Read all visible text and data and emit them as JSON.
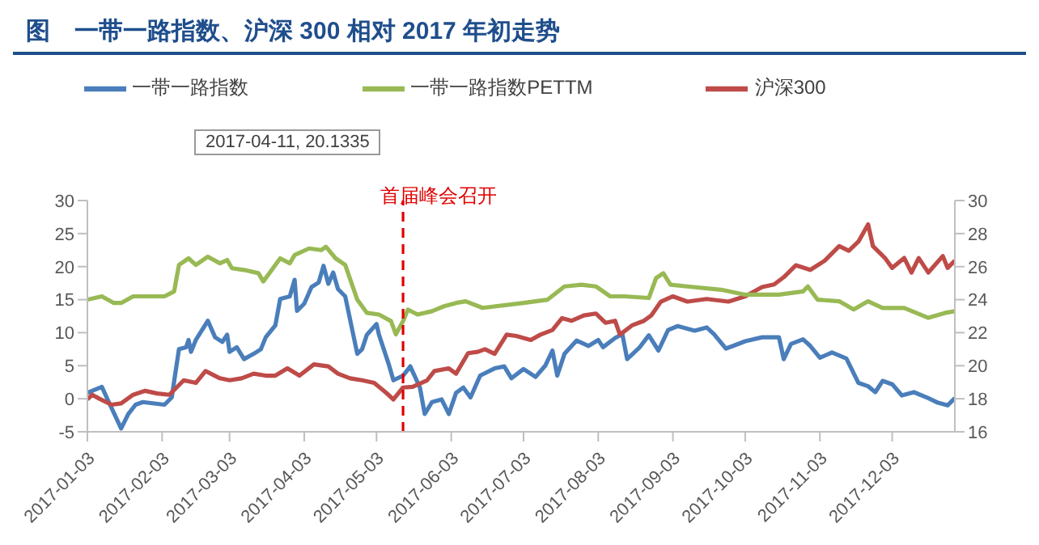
{
  "chart_data": {
    "type": "line",
    "title": "图　一带一路指数、沪深 300 相对 2017 年初走势",
    "annotations": [
      "2017-04-11, 20.1335"
    ],
    "legend": "top",
    "xlim": [
      "2017-01-03",
      "2017-12-29"
    ],
    "xticks": [
      "2017-01-03",
      "2017-02-03",
      "2017-03-03",
      "2017-04-03",
      "2017-05-03",
      "2017-06-03",
      "2017-07-03",
      "2017-08-03",
      "2017-09-03",
      "2017-10-03",
      "2017-11-03",
      "2017-12-03"
    ],
    "ylim": [
      -5,
      30
    ],
    "yticks": [
      -5,
      0,
      5,
      10,
      15,
      20,
      25,
      30
    ],
    "y2lim": [
      16,
      30
    ],
    "y2ticks": [
      16,
      18,
      20,
      22,
      24,
      26,
      28,
      30
    ],
    "ref_lines": [
      {
        "axis": "x",
        "value": "2017-05-14",
        "label": "首届峰会召开",
        "color": "#e00000",
        "line_style": "dashed"
      }
    ],
    "series": [
      {
        "name": "一带一路指数",
        "color": "#4a7ebb",
        "x": [
          "2017-01-03",
          "2017-01-09",
          "2017-01-11",
          "2017-01-17",
          "2017-01-20",
          "2017-01-23",
          "2017-01-26",
          "2017-02-04",
          "2017-02-07",
          "2017-02-10",
          "2017-02-13",
          "2017-02-14",
          "2017-02-15",
          "2017-02-17",
          "2017-02-22",
          "2017-02-25",
          "2017-02-28",
          "2017-03-02",
          "2017-03-03",
          "2017-03-06",
          "2017-03-09",
          "2017-03-13",
          "2017-03-16",
          "2017-03-18",
          "2017-03-22",
          "2017-03-24",
          "2017-03-28",
          "2017-03-30",
          "2017-03-31",
          "2017-04-03",
          "2017-04-06",
          "2017-04-09",
          "2017-04-11",
          "2017-04-13",
          "2017-04-15",
          "2017-04-17",
          "2017-04-20",
          "2017-04-25",
          "2017-04-27",
          "2017-04-29",
          "2017-05-03",
          "2017-05-04",
          "2017-05-08",
          "2017-05-10",
          "2017-05-14",
          "2017-05-17",
          "2017-05-21",
          "2017-05-23",
          "2017-05-26",
          "2017-05-30",
          "2017-06-02",
          "2017-06-05",
          "2017-06-08",
          "2017-06-11",
          "2017-06-15",
          "2017-06-21",
          "2017-06-25",
          "2017-06-28",
          "2017-07-03",
          "2017-07-08",
          "2017-07-12",
          "2017-07-15",
          "2017-07-17",
          "2017-07-20",
          "2017-07-25",
          "2017-07-30",
          "2017-08-03",
          "2017-08-05",
          "2017-08-10",
          "2017-08-13",
          "2017-08-15",
          "2017-08-20",
          "2017-08-24",
          "2017-08-28",
          "2017-09-01",
          "2017-09-05",
          "2017-09-12",
          "2017-09-17",
          "2017-09-20",
          "2017-09-25",
          "2017-09-28",
          "2017-10-03",
          "2017-10-10",
          "2017-10-17",
          "2017-10-19",
          "2017-10-22",
          "2017-10-27",
          "2017-10-30",
          "2017-11-03",
          "2017-11-08",
          "2017-11-14",
          "2017-11-19",
          "2017-11-23",
          "2017-11-26",
          "2017-11-29",
          "2017-12-03",
          "2017-12-07",
          "2017-12-12",
          "2017-12-18",
          "2017-12-22",
          "2017-12-26",
          "2017-12-29"
        ],
        "values": [
          0.9,
          1.8,
          0.2,
          -4.5,
          -2.3,
          -0.9,
          -0.5,
          -0.9,
          0.2,
          7.5,
          7.8,
          8.9,
          7.1,
          8.9,
          11.8,
          9.3,
          8.6,
          9.7,
          7.1,
          7.8,
          6,
          6.8,
          7.5,
          9.3,
          11.1,
          15.1,
          15.5,
          18,
          13.3,
          14.4,
          16.9,
          17.6,
          20.1335,
          17.4,
          19.1,
          16.6,
          15.5,
          6.8,
          7.5,
          9.7,
          11.3,
          9.7,
          5.3,
          2.8,
          3.5,
          4.9,
          1.7,
          -2.3,
          -0.5,
          -0.1,
          -2.3,
          0.9,
          1.7,
          0.2,
          3.5,
          4.6,
          4.9,
          3.1,
          4.5,
          3.3,
          5,
          7.3,
          3.5,
          6.8,
          8.8,
          8,
          8.9,
          7.8,
          9.2,
          9.8,
          6,
          7.7,
          9.6,
          7.3,
          10.4,
          11,
          10.3,
          10.8,
          9.8,
          7.6,
          8,
          8.7,
          9.3,
          9.3,
          6,
          8.3,
          9,
          8,
          6.2,
          7,
          6.1,
          2.4,
          1.9,
          1,
          2.7,
          2.2,
          0.5,
          1,
          0.1,
          -0.6,
          -1,
          0.1
        ]
      },
      {
        "name": "沪深300",
        "color": "#be4b48",
        "x": [
          "2017-01-03",
          "2017-01-05",
          "2017-01-08",
          "2017-01-13",
          "2017-01-17",
          "2017-01-22",
          "2017-01-27",
          "2017-02-01",
          "2017-02-06",
          "2017-02-12",
          "2017-02-17",
          "2017-02-21",
          "2017-02-27",
          "2017-03-03",
          "2017-03-08",
          "2017-03-13",
          "2017-03-18",
          "2017-03-22",
          "2017-03-27",
          "2017-04-01",
          "2017-04-07",
          "2017-04-13",
          "2017-04-17",
          "2017-04-22",
          "2017-04-27",
          "2017-05-02",
          "2017-05-07",
          "2017-05-10",
          "2017-05-14",
          "2017-05-18",
          "2017-05-24",
          "2017-05-27",
          "2017-06-02",
          "2017-06-05",
          "2017-06-10",
          "2017-06-14",
          "2017-06-17",
          "2017-06-21",
          "2017-06-26",
          "2017-06-30",
          "2017-07-06",
          "2017-07-10",
          "2017-07-15",
          "2017-07-19",
          "2017-07-23",
          "2017-07-28",
          "2017-08-02",
          "2017-08-06",
          "2017-08-10",
          "2017-08-12",
          "2017-08-17",
          "2017-08-22",
          "2017-08-25",
          "2017-08-29",
          "2017-09-03",
          "2017-09-09",
          "2017-09-17",
          "2017-09-26",
          "2017-10-03",
          "2017-10-10",
          "2017-10-15",
          "2017-10-19",
          "2017-10-24",
          "2017-10-30",
          "2017-11-05",
          "2017-11-11",
          "2017-11-15",
          "2017-11-19",
          "2017-11-23",
          "2017-11-25",
          "2017-11-30",
          "2017-12-03",
          "2017-12-08",
          "2017-12-11",
          "2017-12-14",
          "2017-12-18",
          "2017-12-24",
          "2017-12-26",
          "2017-12-29"
        ],
        "values": [
          -0.1,
          0.6,
          0,
          -0.9,
          -0.7,
          0.6,
          1.2,
          0.8,
          0.6,
          2.8,
          2.4,
          4.2,
          3.1,
          2.8,
          3.1,
          3.8,
          3.5,
          3.5,
          4.6,
          3.5,
          5.2,
          4.9,
          3.8,
          3.1,
          2.8,
          2.4,
          0.9,
          -0.1,
          1.7,
          1.8,
          2.8,
          4.2,
          4.6,
          3.8,
          6.9,
          7.1,
          7.5,
          6.8,
          9.7,
          9.5,
          8.9,
          9.7,
          10.4,
          12.2,
          11.8,
          12.6,
          12.9,
          11.5,
          11.8,
          9.7,
          11.1,
          11.8,
          12.6,
          14.7,
          15.5,
          14.7,
          15.1,
          14.7,
          15.5,
          16.9,
          17.3,
          18.4,
          20.2,
          19.5,
          20.9,
          23.1,
          22.4,
          23.8,
          26.4,
          23.1,
          21.3,
          19.8,
          21.3,
          19.1,
          21.3,
          19.1,
          21.6,
          19.8,
          20.9
        ]
      },
      {
        "name": "一带一路指数PETTM",
        "color": "#98b954",
        "axis": "y2",
        "x": [
          "2017-01-03",
          "2017-01-09",
          "2017-01-14",
          "2017-01-17",
          "2017-01-22",
          "2017-01-27",
          "2017-02-04",
          "2017-02-08",
          "2017-02-10",
          "2017-02-14",
          "2017-02-17",
          "2017-02-22",
          "2017-02-27",
          "2017-03-02",
          "2017-03-04",
          "2017-03-09",
          "2017-03-15",
          "2017-03-17",
          "2017-03-22",
          "2017-03-24",
          "2017-03-28",
          "2017-03-30",
          "2017-04-05",
          "2017-04-10",
          "2017-04-12",
          "2017-04-16",
          "2017-04-20",
          "2017-04-25",
          "2017-04-29",
          "2017-05-04",
          "2017-05-09",
          "2017-05-11",
          "2017-05-14",
          "2017-05-16",
          "2017-05-20",
          "2017-05-26",
          "2017-05-31",
          "2017-06-05",
          "2017-06-09",
          "2017-06-16",
          "2017-07-03",
          "2017-07-13",
          "2017-07-20",
          "2017-07-27",
          "2017-08-02",
          "2017-08-08",
          "2017-08-14",
          "2017-08-24",
          "2017-08-27",
          "2017-08-30",
          "2017-09-02",
          "2017-09-09",
          "2017-09-23",
          "2017-10-03",
          "2017-10-17",
          "2017-10-27",
          "2017-10-29",
          "2017-11-02",
          "2017-11-11",
          "2017-11-17",
          "2017-11-23",
          "2017-11-29",
          "2017-12-08",
          "2017-12-18",
          "2017-12-25",
          "2017-12-29"
        ],
        "values": [
          24,
          24.2,
          23.8,
          23.8,
          24.2,
          24.2,
          24.2,
          24.5,
          26.1,
          26.5,
          26.1,
          26.6,
          26.2,
          26.4,
          25.9,
          25.8,
          25.6,
          25.1,
          26.1,
          26.5,
          26.2,
          26.7,
          27.1,
          27,
          27.2,
          26.5,
          26.1,
          24,
          23.2,
          23.1,
          22.7,
          21.9,
          22.7,
          23.4,
          23.1,
          23.3,
          23.6,
          23.8,
          23.9,
          23.5,
          23.8,
          24,
          24.8,
          24.9,
          24.8,
          24.2,
          24.2,
          24.1,
          25.3,
          25.6,
          24.9,
          24.8,
          24.6,
          24.3,
          24.3,
          24.5,
          24.8,
          24,
          23.9,
          23.4,
          23.9,
          23.5,
          23.5,
          22.9,
          23.2,
          23.3
        ]
      }
    ]
  }
}
